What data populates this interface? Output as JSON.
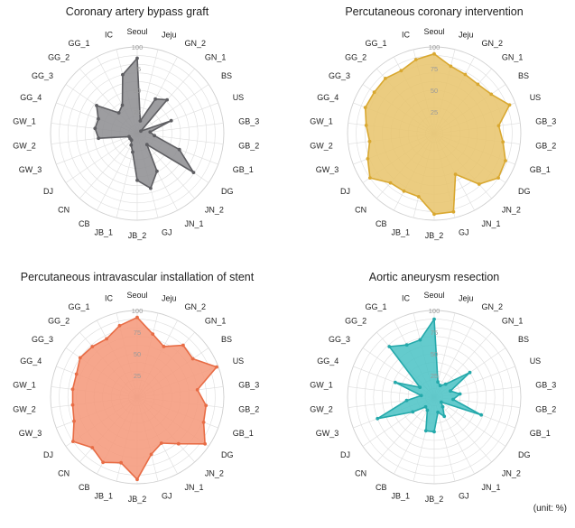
{
  "unit_note": "(unit: %)",
  "chart_data": [
    {
      "type": "radar",
      "title": "Coronary artery bypass graft",
      "color": "#8f8f93",
      "stroke": "#5e5e62",
      "categories": [
        "Seoul",
        "Jeju",
        "GN_2",
        "GN_1",
        "BS",
        "US",
        "GB_3",
        "GB_2",
        "GB_1",
        "DG",
        "JN_2",
        "JN_1",
        "GJ",
        "JB_2",
        "JB_1",
        "CB",
        "CN",
        "DJ",
        "GW_3",
        "GW_2",
        "GW_1",
        "GG_4",
        "GG_3",
        "GG_2",
        "GG_1",
        "IC"
      ],
      "values": [
        87,
        15,
        45,
        52,
        5,
        42,
        15,
        20,
        52,
        79,
        17,
        49,
        65,
        54,
        22,
        15,
        10,
        10,
        10,
        45,
        49,
        48,
        57,
        32,
        37,
        70
      ],
      "rmax": 100,
      "ticks": [
        25,
        50,
        75,
        100
      ]
    },
    {
      "type": "radar",
      "title": "Percutaneous coronary intervention",
      "color": "#e8c56e",
      "stroke": "#d9a830",
      "categories": [
        "Seoul",
        "Jeju",
        "GN_2",
        "GN_1",
        "BS",
        "US",
        "GB_3",
        "GB_2",
        "GB_1",
        "DG",
        "JN_2",
        "JN_1",
        "GJ",
        "JB_2",
        "JB_1",
        "CB",
        "CN",
        "DJ",
        "GW_3",
        "GW_2",
        "GW_1",
        "GG_4",
        "GG_3",
        "GG_2",
        "GG_1",
        "IC"
      ],
      "values": [
        92,
        80,
        77,
        76,
        80,
        93,
        75,
        80,
        88,
        90,
        78,
        53,
        93,
        93,
        75,
        75,
        76,
        90,
        82,
        75,
        79,
        85,
        84,
        85,
        82,
        88
      ],
      "rmax": 100,
      "ticks": [
        25,
        50,
        75,
        100
      ]
    },
    {
      "type": "radar",
      "title": "Percutaneous intravascular installation of stent",
      "color": "#f59a7c",
      "stroke": "#e86c45",
      "categories": [
        "Seoul",
        "Jeju",
        "GN_2",
        "GN_1",
        "BS",
        "US",
        "GB_3",
        "GB_2",
        "GB_1",
        "DG",
        "JN_2",
        "JN_1",
        "GJ",
        "JB_2",
        "JB_1",
        "CB",
        "CN",
        "DJ",
        "GW_3",
        "GW_2",
        "GW_1",
        "GG_4",
        "GG_3",
        "GG_2",
        "GG_1",
        "IC"
      ],
      "values": [
        92,
        75,
        66,
        80,
        78,
        98,
        70,
        80,
        82,
        95,
        72,
        60,
        68,
        95,
        78,
        85,
        78,
        90,
        78,
        75,
        75,
        75,
        80,
        78,
        76,
        85
      ],
      "rmax": 100,
      "ticks": [
        25,
        50,
        75,
        100
      ]
    },
    {
      "type": "radar",
      "title": "Aortic aneurysm resection",
      "color": "#4fc4c6",
      "stroke": "#24a9ab",
      "categories": [
        "Seoul",
        "Jeju",
        "GN_2",
        "GN_1",
        "BS",
        "US",
        "GB_3",
        "GB_2",
        "GB_1",
        "DG",
        "JN_2",
        "JN_1",
        "GJ",
        "JB_2",
        "JB_1",
        "CB",
        "CN",
        "DJ",
        "GW_3",
        "GW_2",
        "GW_1",
        "GG_4",
        "GG_3",
        "GG_2",
        "GG_1",
        "IC"
      ],
      "values": [
        90,
        18,
        15,
        20,
        50,
        20,
        30,
        22,
        58,
        10,
        15,
        25,
        18,
        40,
        40,
        17,
        15,
        30,
        70,
        32,
        15,
        48,
        20,
        78,
        68,
        68
      ],
      "rmax": 100,
      "ticks": [
        25,
        50,
        75,
        100
      ]
    }
  ]
}
